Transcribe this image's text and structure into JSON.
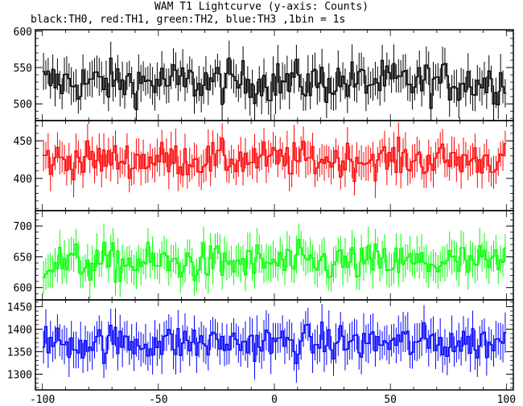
{
  "chart_data": {
    "type": "line",
    "title": "WAM T1 Lightcurve (y-axis: Counts)",
    "subtitle": "black:TH0, red:TH1, green:TH2, blue:TH3 ,1bin = 1s",
    "xlim": [
      -103,
      103
    ],
    "x_ticks": [
      -100,
      -50,
      0,
      50,
      100
    ],
    "x_tick_labels": [
      "-100",
      "-50",
      "0",
      "50",
      "100"
    ],
    "grid": false,
    "panels": [
      {
        "name": "TH0",
        "color": "#000000",
        "ylim": [
          477,
          602
        ],
        "y_ticks": [
          500,
          550,
          600
        ],
        "y_tick_labels": [
          "500",
          "550",
          "600"
        ],
        "mean": 530,
        "noise": 26,
        "err": 22
      },
      {
        "name": "TH1",
        "color": "#ff0000",
        "ylim": [
          357,
          477
        ],
        "y_ticks": [
          400,
          450
        ],
        "y_tick_labels": [
          "400",
          "450"
        ],
        "mean": 425,
        "noise": 21,
        "err": 20
      },
      {
        "name": "TH2",
        "color": "#00ff00",
        "ylim": [
          580,
          725
        ],
        "y_ticks": [
          600,
          650,
          700
        ],
        "y_tick_labels": [
          "600",
          "650",
          "700"
        ],
        "mean": 640,
        "noise": 28,
        "err": 26
      },
      {
        "name": "TH3",
        "color": "#0000ff",
        "ylim": [
          1265,
          1465
        ],
        "y_ticks": [
          1300,
          1350,
          1400,
          1450
        ],
        "y_tick_labels": [
          "1300",
          "1350",
          "1400",
          "1450"
        ],
        "mean": 1370,
        "noise": 36,
        "err": 38
      }
    ]
  }
}
